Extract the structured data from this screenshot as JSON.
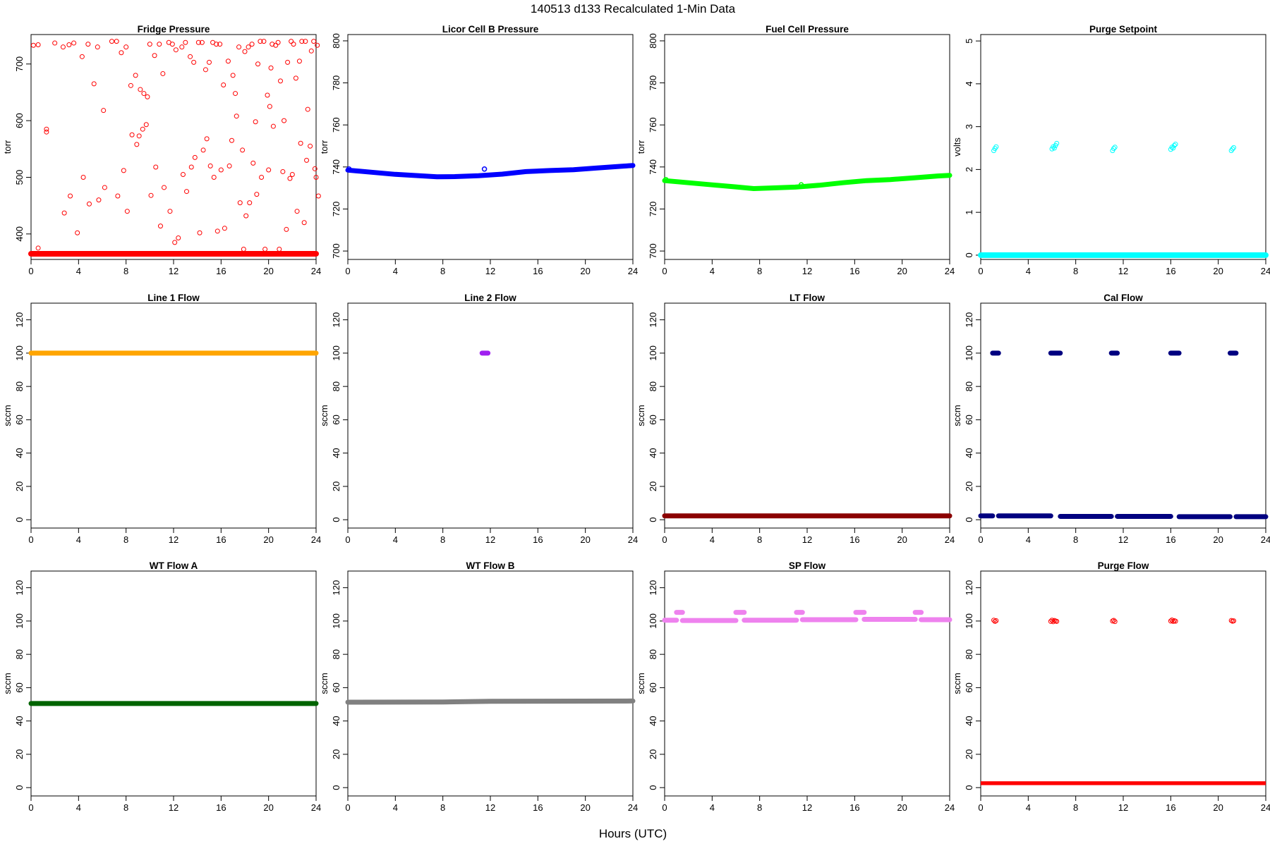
{
  "figure": {
    "title": "140513   d133   Recalculated 1-Min Data",
    "xlabel": "Hours (UTC)"
  },
  "chart_data": [
    {
      "type": "scatter",
      "title": "Fridge Pressure",
      "ylabel": "torr",
      "color": "#ff0000",
      "xlim": [
        0,
        24
      ],
      "ylim": [
        355,
        752
      ],
      "xticks": [
        0,
        4,
        8,
        12,
        16,
        20,
        24
      ],
      "yticks": [
        400,
        500,
        600,
        700
      ],
      "marker": "open",
      "points": [
        [
          0.2,
          733
        ],
        [
          0.6,
          734
        ],
        [
          1.3,
          585
        ],
        [
          1.3,
          580
        ],
        [
          0.6,
          375
        ],
        [
          2.0,
          737
        ],
        [
          2.7,
          730
        ],
        [
          3.2,
          734
        ],
        [
          3.6,
          737
        ],
        [
          2.8,
          437
        ],
        [
          3.3,
          467
        ],
        [
          3.9,
          402
        ],
        [
          4.3,
          713
        ],
        [
          4.4,
          500
        ],
        [
          4.8,
          735
        ],
        [
          4.9,
          453
        ],
        [
          5.3,
          665
        ],
        [
          5.6,
          730
        ],
        [
          5.7,
          460
        ],
        [
          6.1,
          618
        ],
        [
          6.2,
          482
        ],
        [
          6.8,
          740
        ],
        [
          7.2,
          740
        ],
        [
          7.3,
          467
        ],
        [
          7.6,
          720
        ],
        [
          7.8,
          512
        ],
        [
          8.0,
          730
        ],
        [
          8.1,
          440
        ],
        [
          8.4,
          662
        ],
        [
          8.5,
          575
        ],
        [
          8.8,
          680
        ],
        [
          8.9,
          558
        ],
        [
          9.1,
          573
        ],
        [
          9.2,
          655
        ],
        [
          9.4,
          585
        ],
        [
          9.5,
          648
        ],
        [
          9.7,
          593
        ],
        [
          9.8,
          642
        ],
        [
          10.0,
          735
        ],
        [
          10.1,
          468
        ],
        [
          10.4,
          715
        ],
        [
          10.5,
          518
        ],
        [
          10.8,
          735
        ],
        [
          10.9,
          414
        ],
        [
          11.1,
          683
        ],
        [
          11.2,
          482
        ],
        [
          11.6,
          738
        ],
        [
          11.7,
          440
        ],
        [
          11.9,
          735
        ],
        [
          12.1,
          385
        ],
        [
          12.2,
          725
        ],
        [
          12.4,
          393
        ],
        [
          12.7,
          730
        ],
        [
          12.8,
          505
        ],
        [
          13.0,
          738
        ],
        [
          13.1,
          475
        ],
        [
          13.4,
          713
        ],
        [
          13.5,
          518
        ],
        [
          13.7,
          703
        ],
        [
          13.8,
          535
        ],
        [
          14.1,
          738
        ],
        [
          14.2,
          402
        ],
        [
          14.4,
          738
        ],
        [
          14.5,
          548
        ],
        [
          14.7,
          690
        ],
        [
          14.8,
          568
        ],
        [
          15.0,
          703
        ],
        [
          15.1,
          520
        ],
        [
          15.3,
          738
        ],
        [
          15.4,
          500
        ],
        [
          15.6,
          735
        ],
        [
          15.7,
          405
        ],
        [
          15.9,
          735
        ],
        [
          16.0,
          513
        ],
        [
          16.2,
          663
        ],
        [
          16.3,
          410
        ],
        [
          16.6,
          705
        ],
        [
          16.7,
          520
        ],
        [
          16.9,
          565
        ],
        [
          17.0,
          680
        ],
        [
          17.2,
          648
        ],
        [
          17.3,
          608
        ],
        [
          17.5,
          730
        ],
        [
          17.6,
          455
        ],
        [
          17.8,
          548
        ],
        [
          17.9,
          373
        ],
        [
          18.0,
          722
        ],
        [
          18.1,
          432
        ],
        [
          18.3,
          730
        ],
        [
          18.4,
          455
        ],
        [
          18.6,
          735
        ],
        [
          18.7,
          525
        ],
        [
          18.9,
          598
        ],
        [
          19.0,
          470
        ],
        [
          19.1,
          700
        ],
        [
          19.3,
          740
        ],
        [
          19.4,
          500
        ],
        [
          19.6,
          740
        ],
        [
          19.7,
          373
        ],
        [
          19.9,
          645
        ],
        [
          20.0,
          513
        ],
        [
          20.1,
          625
        ],
        [
          20.2,
          693
        ],
        [
          20.3,
          735
        ],
        [
          20.4,
          590
        ],
        [
          20.6,
          733
        ],
        [
          20.8,
          738
        ],
        [
          20.9,
          373
        ],
        [
          21.0,
          670
        ],
        [
          21.2,
          510
        ],
        [
          21.3,
          600
        ],
        [
          21.5,
          408
        ],
        [
          21.6,
          703
        ],
        [
          21.8,
          498
        ],
        [
          21.9,
          740
        ],
        [
          22.0,
          505
        ],
        [
          22.1,
          735
        ],
        [
          22.3,
          675
        ],
        [
          22.4,
          440
        ],
        [
          22.6,
          705
        ],
        [
          22.7,
          560
        ],
        [
          22.8,
          740
        ],
        [
          23.0,
          420
        ],
        [
          23.1,
          740
        ],
        [
          23.2,
          530
        ],
        [
          23.3,
          620
        ],
        [
          23.5,
          555
        ],
        [
          23.6,
          723
        ],
        [
          23.8,
          740
        ],
        [
          23.9,
          515
        ],
        [
          24.0,
          500
        ],
        [
          24.1,
          733
        ],
        [
          24.2,
          467
        ]
      ],
      "baseline": {
        "value": 365,
        "x": [
          0,
          24
        ]
      }
    },
    {
      "type": "line",
      "title": "Licor Cell B Pressure",
      "ylabel": "torr",
      "color": "#0000ff",
      "xlim": [
        0,
        24
      ],
      "ylim": [
        696,
        803
      ],
      "xticks": [
        0,
        4,
        8,
        12,
        16,
        20,
        24
      ],
      "yticks": [
        700,
        720,
        740,
        760,
        780,
        800
      ],
      "series": [
        {
          "x": [
            0,
            2,
            4,
            6,
            7.5,
            9,
            11,
            13,
            15,
            17,
            19,
            21,
            23,
            24
          ],
          "y": [
            738.5,
            737.5,
            736.5,
            735.8,
            735.3,
            735.4,
            735.8,
            736.6,
            737.8,
            738.3,
            738.7,
            739.5,
            740.3,
            740.7
          ]
        }
      ],
      "outliers": [
        [
          11.5,
          739
        ],
        [
          0.1,
          739
        ]
      ]
    },
    {
      "type": "line",
      "title": "Fuel Cell Pressure",
      "ylabel": "torr",
      "color": "#00ff00",
      "xlim": [
        0,
        24
      ],
      "ylim": [
        696,
        803
      ],
      "xticks": [
        0,
        4,
        8,
        12,
        16,
        20,
        24
      ],
      "yticks": [
        700,
        720,
        740,
        760,
        780,
        800
      ],
      "series": [
        {
          "x": [
            0,
            2,
            4,
            6,
            7.5,
            9,
            11,
            13,
            15,
            17,
            19,
            21,
            23,
            24
          ],
          "y": [
            733.5,
            732.5,
            731.5,
            730.5,
            729.7,
            730.0,
            730.4,
            731.3,
            732.5,
            733.5,
            734.0,
            734.8,
            735.7,
            736.0
          ]
        }
      ],
      "outliers": [
        [
          11.5,
          731.5
        ],
        [
          0.1,
          734
        ]
      ]
    },
    {
      "type": "scatter",
      "title": "Purge Setpoint",
      "ylabel": "volts",
      "color": "#00ffff",
      "xlim": [
        0,
        24
      ],
      "ylim": [
        -0.1,
        5.15
      ],
      "xticks": [
        0,
        4,
        8,
        12,
        16,
        20,
        24
      ],
      "yticks": [
        0,
        1,
        2,
        3,
        4,
        5
      ],
      "marker": "open",
      "points": [
        [
          1.1,
          2.44
        ],
        [
          1.2,
          2.49
        ],
        [
          1.3,
          2.53
        ],
        [
          6.0,
          2.48
        ],
        [
          6.1,
          2.53
        ],
        [
          6.2,
          2.5
        ],
        [
          6.3,
          2.56
        ],
        [
          6.4,
          2.61
        ],
        [
          11.1,
          2.44
        ],
        [
          11.2,
          2.49
        ],
        [
          11.3,
          2.52
        ],
        [
          16.0,
          2.47
        ],
        [
          16.1,
          2.52
        ],
        [
          16.2,
          2.5
        ],
        [
          16.3,
          2.56
        ],
        [
          16.4,
          2.59
        ],
        [
          21.1,
          2.44
        ],
        [
          21.2,
          2.48
        ],
        [
          21.3,
          2.51
        ]
      ],
      "baseline": {
        "value": 0,
        "x": [
          0,
          24
        ]
      }
    },
    {
      "type": "line",
      "title": "Line 1 Flow",
      "ylabel": "sccm",
      "color": "#ffa500",
      "xlim": [
        0,
        24
      ],
      "ylim": [
        -5,
        130
      ],
      "xticks": [
        0,
        4,
        8,
        12,
        16,
        20,
        24
      ],
      "yticks": [
        0,
        20,
        40,
        60,
        80,
        100,
        120
      ],
      "segments": [
        {
          "x": [
            0,
            24
          ],
          "y": 100
        }
      ]
    },
    {
      "type": "line",
      "title": "Line 2 Flow",
      "ylabel": "sccm",
      "color": "#a020f0",
      "xlim": [
        0,
        24
      ],
      "ylim": [
        -5,
        130
      ],
      "xticks": [
        0,
        4,
        8,
        12,
        16,
        20,
        24
      ],
      "yticks": [
        0,
        20,
        40,
        60,
        80,
        100,
        120
      ],
      "segments": [
        {
          "x": [
            11.3,
            11.8
          ],
          "y": 100
        }
      ]
    },
    {
      "type": "line",
      "title": "LT Flow",
      "ylabel": "sccm",
      "color": "#8b0000",
      "xlim": [
        0,
        24
      ],
      "ylim": [
        -5,
        130
      ],
      "xticks": [
        0,
        4,
        8,
        12,
        16,
        20,
        24
      ],
      "yticks": [
        0,
        20,
        40,
        60,
        80,
        100,
        120
      ],
      "segments": [
        {
          "x": [
            0,
            24
          ],
          "y": 2.3
        }
      ]
    },
    {
      "type": "line",
      "title": "Cal Flow",
      "ylabel": "sccm",
      "color": "#000080",
      "xlim": [
        0,
        24
      ],
      "ylim": [
        -5,
        130
      ],
      "xticks": [
        0,
        4,
        8,
        12,
        16,
        20,
        24
      ],
      "yticks": [
        0,
        20,
        40,
        60,
        80,
        100,
        120
      ],
      "segments": [
        {
          "x": [
            1.0,
            1.5
          ],
          "y": 100
        },
        {
          "x": [
            5.9,
            6.7
          ],
          "y": 100
        },
        {
          "x": [
            11.0,
            11.5
          ],
          "y": 100
        },
        {
          "x": [
            16.0,
            16.7
          ],
          "y": 100
        },
        {
          "x": [
            21.0,
            21.5
          ],
          "y": 100
        },
        {
          "x": [
            0,
            1.0
          ],
          "y": 2.3
        },
        {
          "x": [
            1.5,
            5.9
          ],
          "y": 2.3
        },
        {
          "x": [
            6.7,
            11.0
          ],
          "y": 2.0
        },
        {
          "x": [
            11.5,
            16.0
          ],
          "y": 2.0
        },
        {
          "x": [
            16.7,
            21.0
          ],
          "y": 1.8
        },
        {
          "x": [
            21.5,
            24
          ],
          "y": 1.8
        }
      ]
    },
    {
      "type": "line",
      "title": "WT Flow A",
      "ylabel": "sccm",
      "color": "#006400",
      "xlim": [
        0,
        24
      ],
      "ylim": [
        -5,
        130
      ],
      "xticks": [
        0,
        4,
        8,
        12,
        16,
        20,
        24
      ],
      "yticks": [
        0,
        20,
        40,
        60,
        80,
        100,
        120
      ],
      "segments": [
        {
          "x": [
            0,
            24
          ],
          "y": 50.5
        }
      ]
    },
    {
      "type": "line",
      "title": "WT Flow B",
      "ylabel": "sccm",
      "color": "#808080",
      "xlim": [
        0,
        24
      ],
      "ylim": [
        -5,
        130
      ],
      "xticks": [
        0,
        4,
        8,
        12,
        16,
        20,
        24
      ],
      "yticks": [
        0,
        20,
        40,
        60,
        80,
        100,
        120
      ],
      "series": [
        {
          "x": [
            0,
            8,
            12,
            24
          ],
          "y": [
            51.3,
            51.4,
            51.8,
            52.0
          ]
        }
      ]
    },
    {
      "type": "line",
      "title": "SP Flow",
      "ylabel": "sccm",
      "color": "#ee82ee",
      "xlim": [
        0,
        24
      ],
      "ylim": [
        -5,
        130
      ],
      "xticks": [
        0,
        4,
        8,
        12,
        16,
        20,
        24
      ],
      "yticks": [
        0,
        20,
        40,
        60,
        80,
        100,
        120
      ],
      "segments": [
        {
          "x": [
            0,
            1.0
          ],
          "y": 100.5
        },
        {
          "x": [
            1.5,
            6.0
          ],
          "y": 100.3
        },
        {
          "x": [
            6.7,
            11.1
          ],
          "y": 100.5
        },
        {
          "x": [
            11.6,
            16.1
          ],
          "y": 100.8
        },
        {
          "x": [
            16.8,
            21.1
          ],
          "y": 101.0
        },
        {
          "x": [
            21.6,
            24
          ],
          "y": 100.8
        },
        {
          "x": [
            1.0,
            1.5
          ],
          "y": 105.2
        },
        {
          "x": [
            6.0,
            6.7
          ],
          "y": 105.2
        },
        {
          "x": [
            11.1,
            11.6
          ],
          "y": 105.2
        },
        {
          "x": [
            16.1,
            16.8
          ],
          "y": 105.2
        },
        {
          "x": [
            21.1,
            21.6
          ],
          "y": 105.2
        }
      ]
    },
    {
      "type": "scatter",
      "title": "Purge Flow",
      "ylabel": "sccm",
      "color": "#ff0000",
      "xlim": [
        0,
        24
      ],
      "ylim": [
        -5,
        130
      ],
      "xticks": [
        0,
        4,
        8,
        12,
        16,
        20,
        24
      ],
      "yticks": [
        0,
        20,
        40,
        60,
        80,
        100,
        120
      ],
      "marker": "open",
      "points": [
        [
          1.1,
          100.5
        ],
        [
          1.2,
          99.8
        ],
        [
          1.3,
          100.2
        ],
        [
          5.9,
          99.8
        ],
        [
          6.0,
          100.5
        ],
        [
          6.1,
          99.6
        ],
        [
          6.2,
          100.3
        ],
        [
          6.3,
          100.0
        ],
        [
          6.4,
          99.8
        ],
        [
          11.1,
          100.0
        ],
        [
          11.2,
          100.4
        ],
        [
          11.3,
          99.7
        ],
        [
          16.0,
          100.0
        ],
        [
          16.1,
          100.6
        ],
        [
          16.2,
          99.8
        ],
        [
          16.3,
          100.2
        ],
        [
          16.4,
          99.9
        ],
        [
          21.1,
          100.3
        ],
        [
          21.2,
          99.9
        ],
        [
          21.3,
          100.1
        ]
      ],
      "band": {
        "x": [
          0,
          24
        ],
        "y": [
          1.5,
          3.8
        ]
      }
    }
  ]
}
